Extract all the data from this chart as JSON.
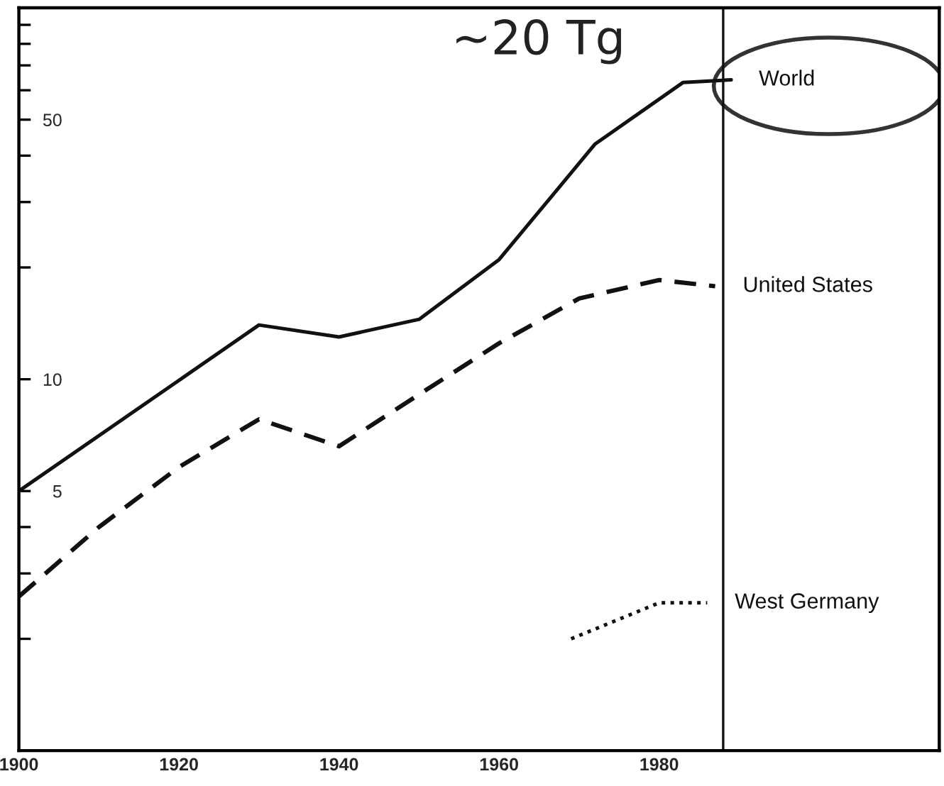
{
  "chart_data": {
    "type": "line",
    "log": "y",
    "xlim": [
      1900,
      2015
    ],
    "xticks": [
      1900,
      1920,
      1940,
      1960,
      1980
    ],
    "ylim": [
      1,
      100
    ],
    "yticks": [
      {
        "value": 2,
        "label": null
      },
      {
        "value": 3,
        "label": null
      },
      {
        "value": 4,
        "label": null
      },
      5,
      10,
      {
        "value": 20,
        "label": null
      },
      {
        "value": 30,
        "label": null
      },
      {
        "value": 40,
        "label": null
      },
      50,
      {
        "value": 60,
        "label": null
      },
      {
        "value": 70,
        "label": null
      },
      {
        "value": 80,
        "label": null
      },
      {
        "value": 90,
        "label": null
      }
    ],
    "grid": false,
    "legend": false,
    "marker": "none",
    "series": [
      {
        "name": "World",
        "color": "#111111",
        "line_style": "solid",
        "x": [
          1900,
          1930,
          1940,
          1950,
          1960,
          1972,
          1983,
          1989
        ],
        "values": [
          5,
          14,
          13,
          14.5,
          21,
          43,
          63,
          64
        ]
      },
      {
        "name": "United States",
        "color": "#111111",
        "line_style": "dashed",
        "x": [
          1900,
          1910,
          1920,
          1930,
          1940,
          1950,
          1960,
          1970,
          1980,
          1987
        ],
        "values": [
          2.6,
          4.0,
          5.8,
          7.8,
          6.6,
          9.1,
          12.5,
          16.5,
          18.5,
          17.8
        ]
      },
      {
        "name": "West Germany",
        "color": "#111111",
        "line_style": "dotted",
        "x": [
          1969,
          1980,
          1986
        ],
        "values": [
          2.0,
          2.5,
          2.5
        ]
      }
    ],
    "ref_lines": [
      {
        "axis": "x",
        "value": 1988,
        "color": "#111111"
      }
    ],
    "annotations": [
      "~20 Tg"
    ]
  }
}
